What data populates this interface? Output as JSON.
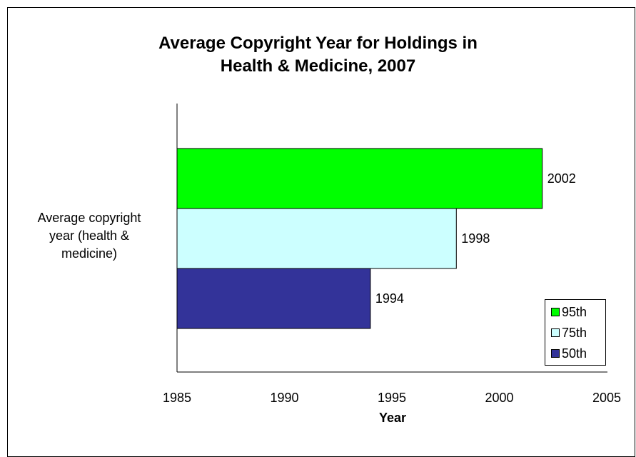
{
  "chart_data": {
    "type": "bar",
    "orientation": "horizontal",
    "title": [
      "Average Copyright Year for Holdings in",
      "Health & Medicine, 2007"
    ],
    "categories": [
      "Average copyright year (health & medicine)"
    ],
    "category_label_lines": [
      "Average copyright",
      "year (health &",
      "medicine)"
    ],
    "series": [
      {
        "name": "95th",
        "values": [
          2002
        ],
        "color": "#00ff00"
      },
      {
        "name": "75th",
        "values": [
          1998
        ],
        "color": "#ccffff"
      },
      {
        "name": "50th",
        "values": [
          1994
        ],
        "color": "#333399"
      }
    ],
    "data_labels": [
      "2002",
      "1998",
      "1994"
    ],
    "xlabel": "Year",
    "ylabel": "",
    "xlim": [
      1985,
      2005
    ],
    "xticks": [
      1985,
      1990,
      1995,
      2000,
      2005
    ],
    "xtick_labels": [
      "1985",
      "1990",
      "1995",
      "2000",
      "2005"
    ],
    "grid": false,
    "legend_position": "bottom-right"
  }
}
